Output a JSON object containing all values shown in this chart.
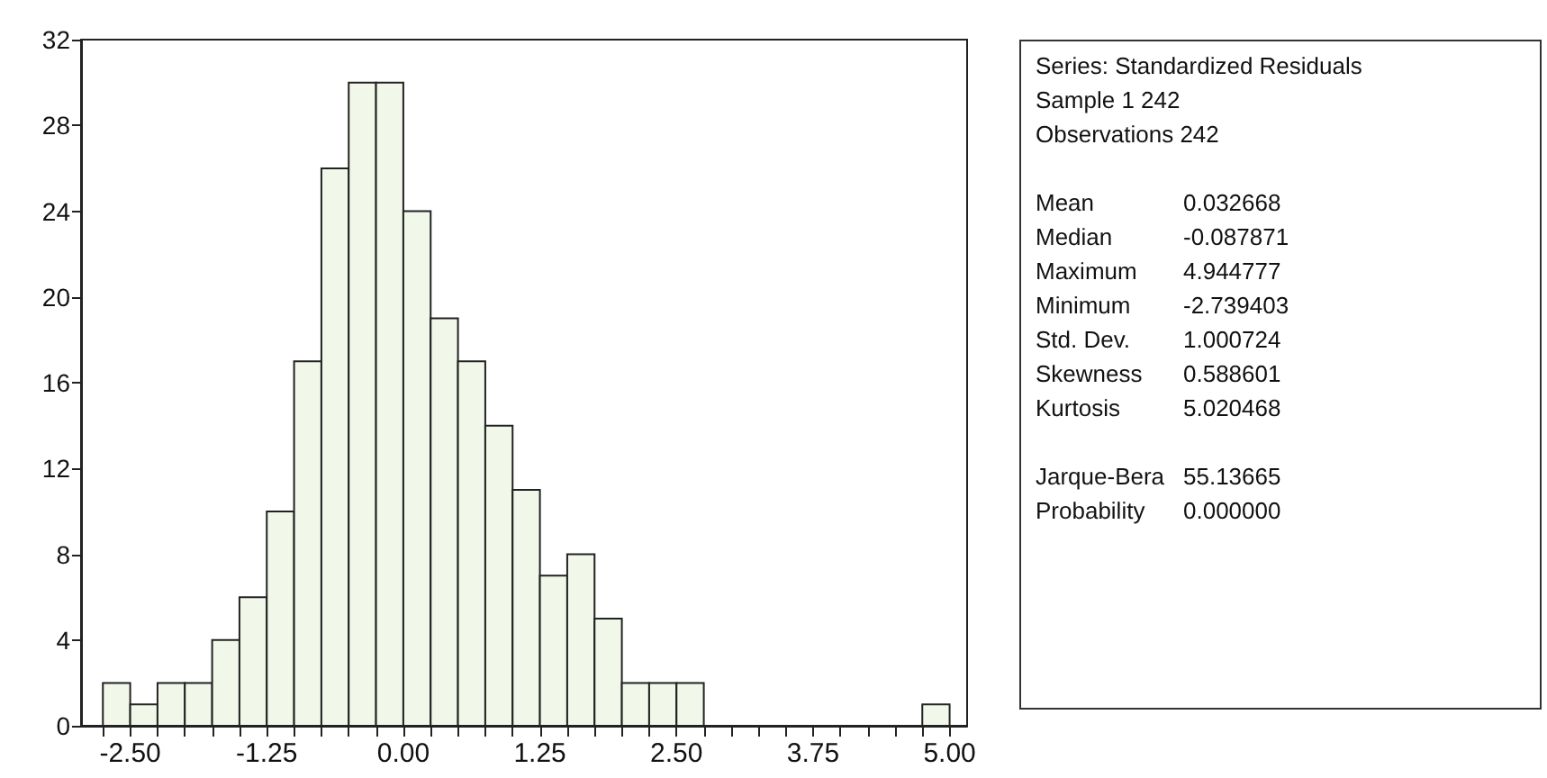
{
  "chart_data": {
    "type": "histogram",
    "bins": [
      -2.75,
      -2.5,
      -2.25,
      -2.0,
      -1.75,
      -1.5,
      -1.25,
      -1.0,
      -0.75,
      -0.5,
      -0.25,
      0.0,
      0.25,
      0.5,
      0.75,
      1.0,
      1.25,
      1.5,
      1.75,
      2.0,
      2.25,
      2.5,
      2.75,
      3.0,
      3.25,
      3.5,
      3.75,
      4.0,
      4.25,
      4.5,
      4.75,
      5.0
    ],
    "values": [
      2,
      1,
      2,
      2,
      4,
      6,
      10,
      17,
      26,
      30,
      30,
      24,
      19,
      17,
      14,
      11,
      7,
      8,
      5,
      2,
      2,
      2,
      0,
      0,
      0,
      0,
      0,
      0,
      0,
      0,
      1
    ],
    "color": "#f1f8e9",
    "xlim": [
      -2.95,
      5.16
    ],
    "xticks": [
      {
        "value": -2.75,
        "label": null
      },
      {
        "value": -2.5,
        "label": "-2.50"
      },
      {
        "value": -2.25,
        "label": null
      },
      {
        "value": -2.0,
        "label": null
      },
      {
        "value": -1.75,
        "label": null
      },
      {
        "value": -1.5,
        "label": null
      },
      {
        "value": -1.25,
        "label": "-1.25"
      },
      {
        "value": -1.0,
        "label": null
      },
      {
        "value": -0.75,
        "label": null
      },
      {
        "value": -0.5,
        "label": null
      },
      {
        "value": -0.25,
        "label": null
      },
      {
        "value": 0,
        "label": "0.00"
      },
      {
        "value": 0.25,
        "label": null
      },
      {
        "value": 0.5,
        "label": null
      },
      {
        "value": 0.75,
        "label": null
      },
      {
        "value": 1.0,
        "label": null
      },
      {
        "value": 1.25,
        "label": "1.25"
      },
      {
        "value": 1.5,
        "label": null
      },
      {
        "value": 1.75,
        "label": null
      },
      {
        "value": 2.0,
        "label": null
      },
      {
        "value": 2.25,
        "label": null
      },
      {
        "value": 2.5,
        "label": "2.50"
      },
      {
        "value": 2.75,
        "label": null
      },
      {
        "value": 3.0,
        "label": null
      },
      {
        "value": 3.25,
        "label": null
      },
      {
        "value": 3.5,
        "label": null
      },
      {
        "value": 3.75,
        "label": "3.75"
      },
      {
        "value": 4.0,
        "label": null
      },
      {
        "value": 4.25,
        "label": null
      },
      {
        "value": 4.5,
        "label": null
      },
      {
        "value": 4.75,
        "label": null
      },
      {
        "value": 5.0,
        "label": "5.00"
      }
    ],
    "ylim": [
      0,
      32
    ],
    "yticks": [
      0,
      4,
      8,
      12,
      16,
      20,
      24,
      28,
      32
    ],
    "grid": false,
    "annotations": [
      "Series: Standardized Residuals",
      "Sample 1 242",
      "Observations 242",
      "Mean 0.032668",
      "Median -0.087871",
      "Maximum 4.944777",
      "Minimum -2.739403",
      "Std. Dev. 1.000724",
      "Skewness 0.588601",
      "Kurtosis 5.020468",
      "Jarque-Bera 55.13665",
      "Probability 0.000000"
    ]
  }
}
